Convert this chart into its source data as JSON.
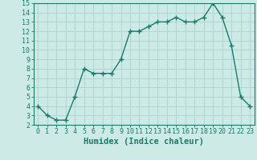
{
  "x": [
    0,
    1,
    2,
    3,
    4,
    5,
    6,
    7,
    8,
    9,
    10,
    11,
    12,
    13,
    14,
    15,
    16,
    17,
    18,
    19,
    20,
    21,
    22,
    23
  ],
  "y": [
    4,
    3,
    2.5,
    2.5,
    5,
    8,
    7.5,
    7.5,
    7.5,
    9,
    12,
    12,
    12.5,
    13,
    13,
    13.5,
    13,
    13,
    13.5,
    15,
    13.5,
    10.5,
    5,
    4
  ],
  "line_color": "#1a7a6e",
  "marker": "+",
  "marker_size": 4,
  "marker_lw": 1.0,
  "line_width": 1.0,
  "bg_color": "#ceeae6",
  "grid_color": "#b0d8d2",
  "xlabel": "Humidex (Indice chaleur)",
  "xlim": [
    -0.5,
    23.5
  ],
  "ylim": [
    2,
    15
  ],
  "yticks": [
    2,
    3,
    4,
    5,
    6,
    7,
    8,
    9,
    10,
    11,
    12,
    13,
    14,
    15
  ],
  "xticks": [
    0,
    1,
    2,
    3,
    4,
    5,
    6,
    7,
    8,
    9,
    10,
    11,
    12,
    13,
    14,
    15,
    16,
    17,
    18,
    19,
    20,
    21,
    22,
    23
  ],
  "tick_label_fontsize": 6,
  "xlabel_fontsize": 7.5
}
